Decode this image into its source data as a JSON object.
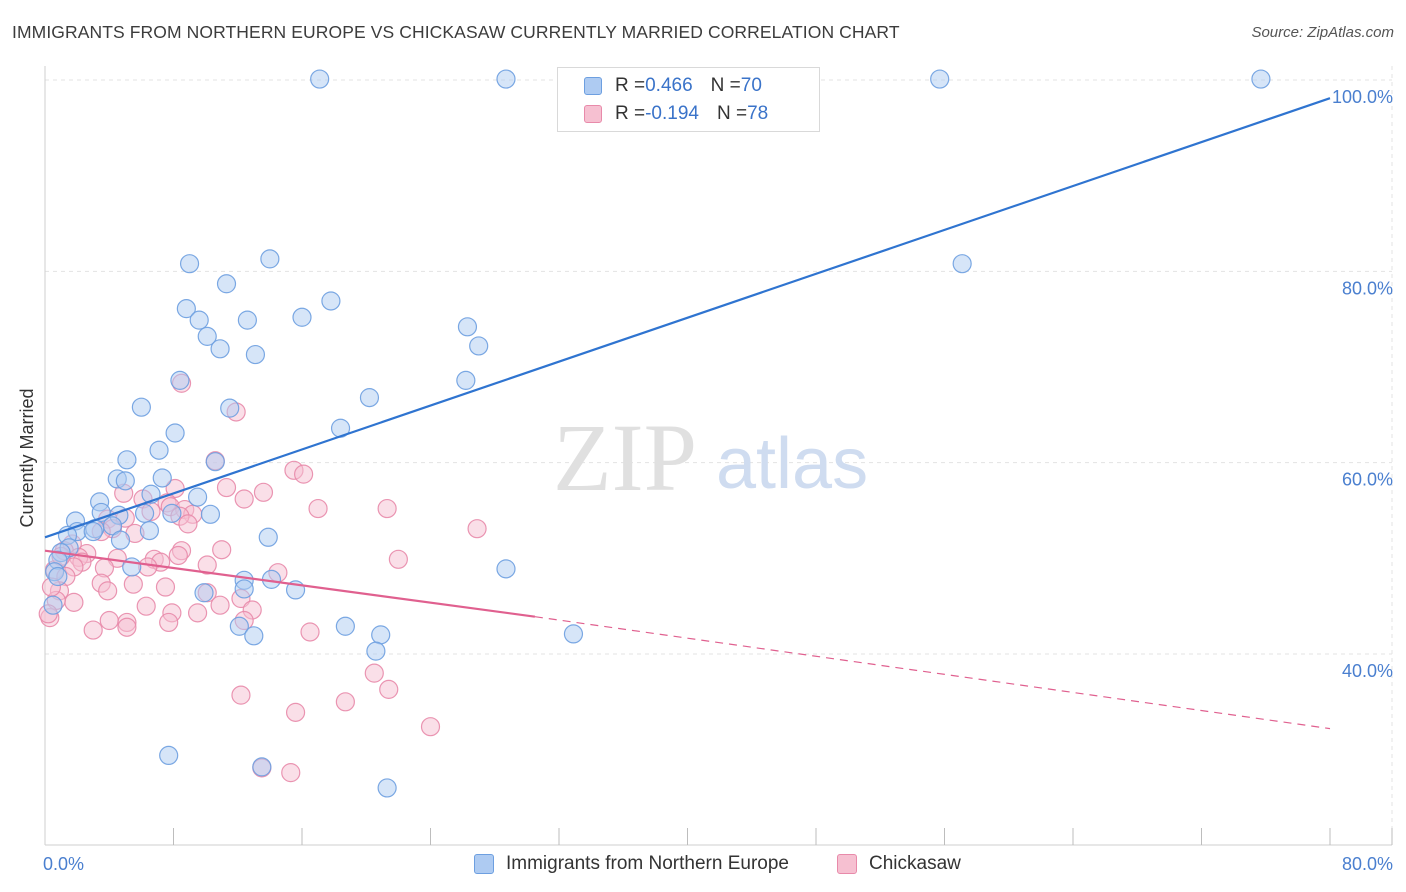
{
  "header": {
    "title": "IMMIGRANTS FROM NORTHERN EUROPE VS CHICKASAW CURRENTLY MARRIED CORRELATION CHART",
    "source": "Source: ZipAtlas.com"
  },
  "watermark": {
    "part1": "ZIP",
    "part2": "atlas"
  },
  "legend_top": {
    "rows": [
      {
        "r_label": "R = ",
        "r_value": "0.466",
        "n_label": "N = ",
        "n_value": "70"
      },
      {
        "r_label": "R = ",
        "r_value": "-0.194",
        "n_label": "N = ",
        "n_value": "78"
      }
    ]
  },
  "legend_bottom": {
    "items": [
      {
        "label": "Immigrants from Northern Europe"
      },
      {
        "label": "Chickasaw"
      }
    ]
  },
  "colors": {
    "blue_fill": "#aecbf2",
    "blue_stroke": "#6d9fe0",
    "blue_line": "#2f74d0",
    "pink_fill": "#f6c0d1",
    "pink_stroke": "#e88aaa",
    "pink_line": "#e0608f",
    "grid": "#e3e3e3",
    "tick_label": "#4a7fcf"
  },
  "chart_data": {
    "type": "scatter",
    "title": "IMMIGRANTS FROM NORTHERN EUROPE VS CHICKASAW CURRENTLY MARRIED CORRELATION CHART",
    "xlabel": "",
    "ylabel": "Currently Married",
    "xlim": [
      0,
      80
    ],
    "ylim": [
      20,
      102
    ],
    "x_tick_labels": [
      {
        "value": 0,
        "label": "0.0%"
      },
      {
        "value": 80,
        "label": "80.0%"
      }
    ],
    "y_tick_labels": [
      {
        "value": 40,
        "label": "40.0%"
      },
      {
        "value": 60,
        "label": "60.0%"
      },
      {
        "value": 80,
        "label": "80.0%"
      },
      {
        "value": 100,
        "label": "100.0%"
      }
    ],
    "grid": true,
    "legend_position": "top-center",
    "series": [
      {
        "name": "Immigrants from Northern Europe",
        "color": "#6d9fe0",
        "R": 0.466,
        "N": 70,
        "trend": {
          "x": [
            0,
            80
          ],
          "y": [
            52.2,
            98.1
          ]
        },
        "points": [
          [
            17.1,
            100.1
          ],
          [
            28.7,
            100.1
          ],
          [
            55.7,
            100.1
          ],
          [
            75.7,
            100.1
          ],
          [
            57.1,
            80.8
          ],
          [
            9.0,
            80.8
          ],
          [
            14.0,
            81.3
          ],
          [
            11.3,
            78.7
          ],
          [
            17.8,
            76.9
          ],
          [
            8.8,
            76.1
          ],
          [
            9.6,
            74.9
          ],
          [
            12.6,
            74.9
          ],
          [
            16.0,
            75.2
          ],
          [
            10.1,
            73.2
          ],
          [
            10.9,
            71.9
          ],
          [
            13.1,
            71.3
          ],
          [
            26.3,
            74.2
          ],
          [
            27.0,
            72.2
          ],
          [
            8.4,
            68.6
          ],
          [
            26.2,
            68.6
          ],
          [
            20.2,
            66.8
          ],
          [
            11.5,
            65.7
          ],
          [
            6.0,
            65.8
          ],
          [
            8.1,
            63.1
          ],
          [
            18.4,
            63.6
          ],
          [
            7.1,
            61.3
          ],
          [
            10.6,
            60.1
          ],
          [
            5.1,
            60.3
          ],
          [
            7.3,
            58.4
          ],
          [
            4.5,
            58.3
          ],
          [
            5.0,
            58.1
          ],
          [
            3.4,
            55.9
          ],
          [
            9.5,
            56.4
          ],
          [
            6.6,
            56.7
          ],
          [
            7.9,
            54.7
          ],
          [
            10.3,
            54.6
          ],
          [
            6.2,
            54.7
          ],
          [
            3.5,
            54.8
          ],
          [
            4.6,
            54.5
          ],
          [
            1.9,
            53.9
          ],
          [
            4.2,
            53.4
          ],
          [
            3.1,
            53.1
          ],
          [
            2.0,
            52.8
          ],
          [
            3.0,
            52.8
          ],
          [
            1.4,
            52.4
          ],
          [
            6.5,
            52.9
          ],
          [
            13.9,
            52.2
          ],
          [
            4.7,
            51.9
          ],
          [
            1.5,
            51.1
          ],
          [
            1.0,
            50.6
          ],
          [
            0.8,
            49.8
          ],
          [
            5.4,
            49.1
          ],
          [
            28.7,
            48.9
          ],
          [
            0.6,
            48.6
          ],
          [
            0.8,
            48.1
          ],
          [
            12.4,
            47.7
          ],
          [
            14.1,
            47.8
          ],
          [
            12.4,
            46.8
          ],
          [
            15.6,
            46.7
          ],
          [
            9.9,
            46.4
          ],
          [
            0.5,
            45.1
          ],
          [
            18.7,
            42.9
          ],
          [
            12.1,
            42.9
          ],
          [
            13.0,
            41.9
          ],
          [
            20.9,
            42.0
          ],
          [
            32.9,
            42.1
          ],
          [
            20.6,
            40.3
          ],
          [
            7.7,
            29.4
          ],
          [
            13.5,
            28.2
          ],
          [
            21.3,
            26.0
          ]
        ]
      },
      {
        "name": "Chickasaw",
        "color": "#e88aaa",
        "R": -0.194,
        "N": 78,
        "trend": {
          "x": [
            0,
            30.5
          ],
          "y": [
            50.8,
            43.9
          ]
        },
        "trend_dashed": {
          "x": [
            30.5,
            80
          ],
          "y": [
            43.9,
            32.2
          ]
        },
        "points": [
          [
            8.5,
            68.3
          ],
          [
            11.9,
            65.3
          ],
          [
            10.6,
            60.2
          ],
          [
            15.5,
            59.2
          ],
          [
            16.1,
            58.8
          ],
          [
            8.1,
            57.3
          ],
          [
            11.3,
            57.4
          ],
          [
            4.9,
            56.8
          ],
          [
            13.6,
            56.9
          ],
          [
            12.4,
            56.2
          ],
          [
            6.1,
            56.2
          ],
          [
            7.6,
            55.8
          ],
          [
            21.3,
            55.2
          ],
          [
            17.0,
            55.2
          ],
          [
            7.8,
            55.4
          ],
          [
            8.7,
            55.1
          ],
          [
            6.6,
            54.9
          ],
          [
            9.2,
            54.6
          ],
          [
            8.4,
            54.4
          ],
          [
            3.9,
            54.1
          ],
          [
            5.0,
            54.2
          ],
          [
            8.9,
            53.6
          ],
          [
            4.2,
            53.1
          ],
          [
            26.9,
            53.1
          ],
          [
            3.5,
            52.8
          ],
          [
            5.6,
            52.6
          ],
          [
            1.7,
            51.5
          ],
          [
            11.0,
            50.9
          ],
          [
            1.2,
            50.8
          ],
          [
            2.6,
            50.5
          ],
          [
            8.5,
            50.8
          ],
          [
            8.3,
            50.3
          ],
          [
            4.5,
            50.0
          ],
          [
            6.8,
            49.9
          ],
          [
            2.1,
            50.1
          ],
          [
            22.0,
            49.9
          ],
          [
            2.3,
            49.6
          ],
          [
            7.2,
            49.6
          ],
          [
            1.8,
            49.1
          ],
          [
            6.4,
            49.1
          ],
          [
            3.7,
            49.0
          ],
          [
            10.1,
            49.3
          ],
          [
            0.6,
            48.8
          ],
          [
            1.3,
            48.1
          ],
          [
            14.5,
            48.5
          ],
          [
            3.5,
            47.4
          ],
          [
            5.5,
            47.3
          ],
          [
            7.5,
            47.0
          ],
          [
            0.9,
            46.6
          ],
          [
            10.1,
            46.4
          ],
          [
            3.9,
            46.6
          ],
          [
            12.2,
            45.8
          ],
          [
            1.8,
            45.4
          ],
          [
            0.7,
            45.6
          ],
          [
            10.9,
            45.1
          ],
          [
            6.3,
            45.0
          ],
          [
            12.9,
            44.6
          ],
          [
            7.9,
            44.3
          ],
          [
            9.5,
            44.3
          ],
          [
            0.3,
            43.8
          ],
          [
            12.4,
            43.5
          ],
          [
            4.0,
            43.5
          ],
          [
            5.1,
            43.3
          ],
          [
            7.7,
            43.3
          ],
          [
            3.0,
            42.5
          ],
          [
            16.5,
            42.3
          ],
          [
            5.1,
            42.8
          ],
          [
            20.5,
            38.0
          ],
          [
            21.4,
            36.3
          ],
          [
            12.2,
            35.7
          ],
          [
            18.7,
            35.0
          ],
          [
            15.6,
            33.9
          ],
          [
            24.0,
            32.4
          ],
          [
            13.5,
            28.1
          ],
          [
            15.3,
            27.6
          ],
          [
            0.2,
            44.2
          ],
          [
            0.4,
            47.0
          ],
          [
            1.0,
            50.2
          ]
        ]
      }
    ]
  }
}
